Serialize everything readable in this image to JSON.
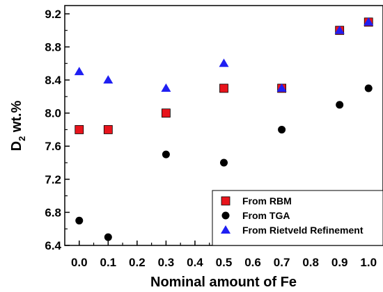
{
  "chart_data": {
    "type": "scatter",
    "xlabel": "Nominal amount of Fe",
    "ylabel_parts": [
      "D",
      "2",
      " wt.%"
    ],
    "xlim": [
      -0.05,
      1.05
    ],
    "ylim": [
      6.4,
      9.3
    ],
    "xticks": [
      0.0,
      0.1,
      0.2,
      0.3,
      0.4,
      0.5,
      0.6,
      0.7,
      0.8,
      0.9,
      1.0
    ],
    "xtick_labels": [
      "0.0",
      "0.1",
      "0.2",
      "0.3",
      "0.4",
      "0.5",
      "0.6",
      "0.7",
      "0.8",
      "0.9",
      "1.0"
    ],
    "yticks": [
      6.4,
      6.8,
      7.2,
      7.6,
      8.0,
      8.4,
      8.8,
      9.2
    ],
    "ytick_labels": [
      "6.4",
      "6.8",
      "7.2",
      "7.6",
      "8.0",
      "8.4",
      "8.8",
      "9.2"
    ],
    "grid": false,
    "legend_position": "bottom-right",
    "series": [
      {
        "name": "From RBM",
        "marker": "square",
        "color": "#e8141c",
        "x": [
          0.0,
          0.1,
          0.3,
          0.5,
          0.7,
          0.9,
          1.0
        ],
        "y": [
          7.8,
          7.8,
          8.0,
          8.3,
          8.3,
          9.0,
          9.1
        ]
      },
      {
        "name": "From TGA",
        "marker": "circle",
        "color": "#000000",
        "x": [
          0.0,
          0.1,
          0.3,
          0.5,
          0.7,
          0.9,
          1.0
        ],
        "y": [
          6.7,
          6.5,
          7.5,
          7.4,
          7.8,
          8.1,
          8.3
        ]
      },
      {
        "name": "From Rietveld Refinement",
        "marker": "triangle",
        "color": "#1f1ff2",
        "x": [
          0.0,
          0.1,
          0.3,
          0.5,
          0.7,
          0.9,
          1.0
        ],
        "y": [
          8.5,
          8.4,
          8.3,
          8.6,
          8.3,
          9.0,
          9.1
        ]
      }
    ]
  }
}
